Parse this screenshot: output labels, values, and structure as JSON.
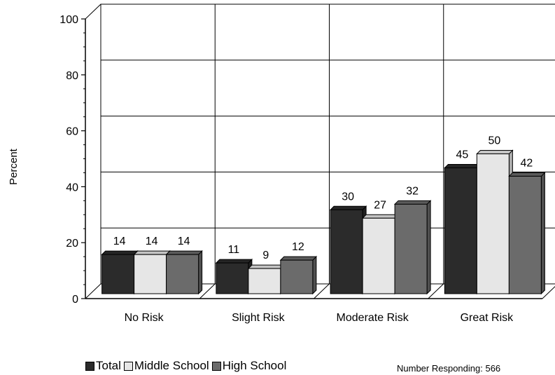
{
  "chart_data": {
    "type": "bar",
    "categories": [
      "No Risk",
      "Slight Risk",
      "Moderate Risk",
      "Great Risk"
    ],
    "series": [
      {
        "name": "Total",
        "values": [
          14,
          11,
          30,
          45
        ],
        "color": "#2b2b2b"
      },
      {
        "name": "Middle School",
        "values": [
          14,
          9,
          27,
          50
        ],
        "color": "#e6e6e6"
      },
      {
        "name": "High School",
        "values": [
          14,
          12,
          32,
          42
        ],
        "color": "#6b6b6b"
      }
    ],
    "ylabel": "Percent",
    "ylim": [
      0,
      100
    ],
    "yticks": [
      0,
      20,
      40,
      60,
      80,
      100
    ],
    "grid": true,
    "legend_position": "bottom-left",
    "three_d": true
  },
  "footnote": "Number Responding: 566"
}
